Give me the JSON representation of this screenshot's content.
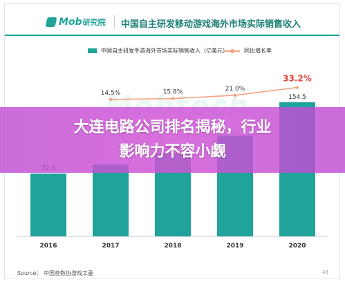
{
  "header": {
    "logo_text": "Mob",
    "logo_sub": "研究院",
    "title": "中国自主研发移动游戏海外市场实际销售收入"
  },
  "legend": {
    "bar_label": "中国自主研发手游海外市场实际销售收入（亿美元）",
    "line_label": "同比增长率"
  },
  "watermark": "Mobtech",
  "source": "Source：    中国音数协游戏工委",
  "page_number": "43",
  "overlay": {
    "line1": "大连电路公司排名揭秘，行业",
    "line2": "影响力不容小觑"
  },
  "colors": {
    "bar": "#1fa39a",
    "line": "#f4a37e",
    "highlight": "#e8413a",
    "overlay": "#c54fd8"
  },
  "chart_data": {
    "type": "bar",
    "categories": [
      "2016",
      "2017",
      "2018",
      "2019",
      "2020"
    ],
    "series": [
      {
        "name": "中国自主研发手游海外市场实际销售收入（亿美元）",
        "values": [
          72.3,
          82.8,
          95.9,
          115.9,
          154.5
        ],
        "value_labels": [
          "72.3",
          "",
          "95.9",
          "",
          "154.5"
        ]
      },
      {
        "name": "同比增长率",
        "type": "line",
        "values": [
          null,
          14.5,
          15.8,
          21.0,
          33.2
        ],
        "value_labels": [
          "",
          "14.5%",
          "15.8%",
          "21.0%",
          "33.2%"
        ]
      }
    ],
    "ylim": [
      0,
      160
    ],
    "grid": false,
    "legend_position": "top"
  }
}
